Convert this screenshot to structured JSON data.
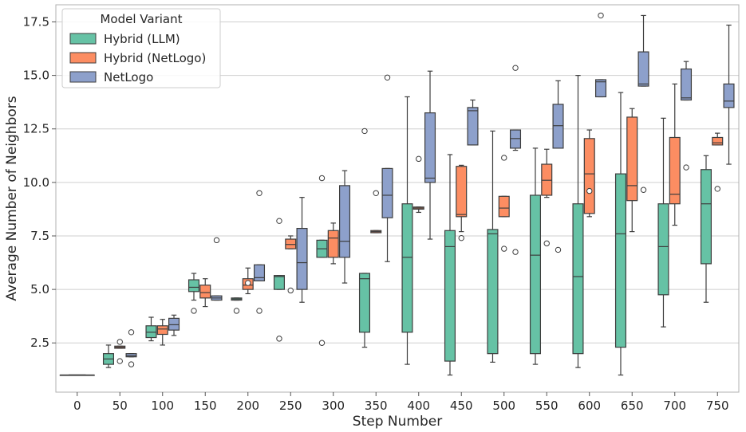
{
  "chart_data": {
    "type": "box",
    "title": "",
    "xlabel": "Step Number",
    "ylabel": "Average Number of Neighbors",
    "categories": [
      "0",
      "50",
      "100",
      "150",
      "200",
      "250",
      "300",
      "350",
      "400",
      "450",
      "500",
      "550",
      "600",
      "650",
      "700",
      "750"
    ],
    "yticks": [
      "2.5",
      "5.0",
      "7.5",
      "10.0",
      "12.5",
      "15.0",
      "17.5"
    ],
    "ylim": [
      0.2,
      18.3
    ],
    "grid": "horizontal",
    "legend": {
      "title": "Model Variant",
      "placement": "top-left",
      "entries": [
        "Hybrid (LLM)",
        "Hybrid (NetLogo)",
        "NetLogo"
      ]
    },
    "series": [
      {
        "name": "Hybrid (LLM)",
        "color": "#66c2a5",
        "boxes": [
          {
            "min": 1.0,
            "q1": 1.0,
            "median": 1.0,
            "q3": 1.0,
            "max": 1.0,
            "outliers": []
          },
          {
            "min": 1.35,
            "q1": 1.5,
            "median": 1.75,
            "q3": 2.0,
            "max": 2.4,
            "outliers": []
          },
          {
            "min": 2.6,
            "q1": 2.75,
            "median": 3.0,
            "q3": 3.3,
            "max": 3.7,
            "outliers": []
          },
          {
            "min": 4.5,
            "q1": 4.9,
            "median": 5.1,
            "q3": 5.45,
            "max": 5.75,
            "outliers": [
              4.0
            ]
          },
          {
            "min": 4.5,
            "q1": 4.5,
            "median": 4.55,
            "q3": 4.6,
            "max": 4.6,
            "outliers": [
              4.0
            ]
          },
          {
            "min": 5.0,
            "q1": 5.0,
            "median": 5.6,
            "q3": 5.65,
            "max": 5.65,
            "outliers": [
              2.7,
              8.2
            ]
          },
          {
            "min": 6.5,
            "q1": 6.5,
            "median": 6.9,
            "q3": 7.3,
            "max": 7.3,
            "outliers": [
              2.5,
              10.2
            ]
          },
          {
            "min": 2.3,
            "q1": 3.0,
            "median": 5.5,
            "q3": 5.75,
            "max": 5.75,
            "outliers": [
              12.4
            ]
          },
          {
            "min": 1.5,
            "q1": 3.0,
            "median": 6.5,
            "q3": 9.0,
            "max": 14.0,
            "outliers": []
          },
          {
            "min": 1.0,
            "q1": 1.65,
            "median": 7.0,
            "q3": 7.75,
            "max": 11.3,
            "outliers": []
          },
          {
            "min": 1.6,
            "q1": 2.0,
            "median": 7.6,
            "q3": 7.8,
            "max": 12.4,
            "outliers": []
          },
          {
            "min": 1.5,
            "q1": 2.0,
            "median": 6.6,
            "q3": 9.4,
            "max": 11.6,
            "outliers": []
          },
          {
            "min": 1.35,
            "q1": 2.0,
            "median": 5.6,
            "q3": 9.0,
            "max": 15.0,
            "outliers": []
          },
          {
            "min": 1.0,
            "q1": 2.3,
            "median": 7.6,
            "q3": 10.4,
            "max": 14.2,
            "outliers": []
          },
          {
            "min": 3.25,
            "q1": 4.75,
            "median": 7.0,
            "q3": 9.0,
            "max": 13.0,
            "outliers": []
          },
          {
            "min": 4.4,
            "q1": 6.2,
            "median": 9.0,
            "q3": 10.6,
            "max": 11.25,
            "outliers": []
          }
        ]
      },
      {
        "name": "Hybrid (NetLogo)",
        "color": "#fc8d62",
        "boxes": [
          null,
          {
            "min": 2.25,
            "q1": 2.25,
            "median": 2.3,
            "q3": 2.35,
            "max": 2.35,
            "outliers": [
              1.65,
              2.55
            ]
          },
          {
            "min": 2.4,
            "q1": 2.9,
            "median": 3.15,
            "q3": 3.3,
            "max": 3.6,
            "outliers": []
          },
          {
            "min": 4.2,
            "q1": 4.6,
            "median": 4.85,
            "q3": 5.2,
            "max": 5.5,
            "outliers": []
          },
          {
            "min": 4.8,
            "q1": 5.0,
            "median": 5.2,
            "q3": 5.5,
            "max": 6.0,
            "outliers": [
              5.3
            ]
          },
          {
            "min": 6.9,
            "q1": 6.9,
            "median": 7.1,
            "q3": 7.35,
            "max": 7.5,
            "outliers": [
              4.95
            ]
          },
          {
            "min": 6.2,
            "q1": 6.5,
            "median": 7.4,
            "q3": 7.75,
            "max": 8.1,
            "outliers": []
          },
          {
            "min": 7.65,
            "q1": 7.65,
            "median": 7.7,
            "q3": 7.75,
            "max": 7.75,
            "outliers": [
              9.5
            ]
          },
          {
            "min": 8.6,
            "q1": 8.75,
            "median": 8.8,
            "q3": 8.85,
            "max": 8.85,
            "outliers": [
              11.1
            ]
          },
          {
            "min": 7.7,
            "q1": 8.4,
            "median": 8.5,
            "q3": 10.75,
            "max": 10.8,
            "outliers": [
              7.4
            ]
          },
          {
            "min": 8.4,
            "q1": 8.4,
            "median": 8.8,
            "q3": 9.35,
            "max": 9.35,
            "outliers": [
              6.9,
              11.15
            ]
          },
          {
            "min": 9.3,
            "q1": 9.4,
            "median": 10.1,
            "q3": 10.85,
            "max": 11.55,
            "outliers": [
              7.15
            ]
          },
          {
            "min": 8.4,
            "q1": 8.55,
            "median": 10.4,
            "q3": 12.05,
            "max": 12.45,
            "outliers": [
              9.6
            ]
          },
          {
            "min": 7.7,
            "q1": 9.15,
            "median": 9.85,
            "q3": 13.05,
            "max": 13.45,
            "outliers": []
          },
          {
            "min": 8.0,
            "q1": 9.0,
            "median": 9.45,
            "q3": 12.1,
            "max": 14.6,
            "outliers": []
          },
          {
            "min": 11.75,
            "q1": 11.75,
            "median": 11.85,
            "q3": 12.1,
            "max": 12.3,
            "outliers": [
              9.7
            ]
          }
        ]
      },
      {
        "name": "NetLogo",
        "color": "#8da0cb",
        "boxes": [
          null,
          {
            "min": 1.85,
            "q1": 1.85,
            "median": 1.9,
            "q3": 2.0,
            "max": 2.0,
            "outliers": [
              1.5,
              3.0
            ]
          },
          {
            "min": 2.85,
            "q1": 3.1,
            "median": 3.35,
            "q3": 3.65,
            "max": 3.8,
            "outliers": []
          },
          {
            "min": 4.5,
            "q1": 4.5,
            "median": 4.6,
            "q3": 4.7,
            "max": 4.7,
            "outliers": [
              7.3
            ]
          },
          {
            "min": 5.4,
            "q1": 5.4,
            "median": 5.55,
            "q3": 6.15,
            "max": 6.15,
            "outliers": [
              4.0,
              9.5
            ]
          },
          {
            "min": 4.4,
            "q1": 5.0,
            "median": 6.25,
            "q3": 7.85,
            "max": 9.3,
            "outliers": []
          },
          {
            "min": 5.3,
            "q1": 6.5,
            "median": 7.25,
            "q3": 9.85,
            "max": 10.55,
            "outliers": []
          },
          {
            "min": 6.3,
            "q1": 8.35,
            "median": 9.4,
            "q3": 10.65,
            "max": 10.65,
            "outliers": [
              14.9
            ]
          },
          {
            "min": 7.35,
            "q1": 10.0,
            "median": 10.2,
            "q3": 13.25,
            "max": 15.2,
            "outliers": []
          },
          {
            "min": 11.75,
            "q1": 11.75,
            "median": 13.35,
            "q3": 13.5,
            "max": 13.85,
            "outliers": []
          },
          {
            "min": 11.5,
            "q1": 11.6,
            "median": 12.05,
            "q3": 12.45,
            "max": 12.45,
            "outliers": [
              6.75,
              15.35
            ]
          },
          {
            "min": 11.6,
            "q1": 11.6,
            "median": 12.65,
            "q3": 13.65,
            "max": 14.75,
            "outliers": [
              6.85
            ]
          },
          {
            "min": 14.0,
            "q1": 14.0,
            "median": 14.7,
            "q3": 14.8,
            "max": 14.8,
            "outliers": [
              17.8
            ]
          },
          {
            "min": 14.5,
            "q1": 14.5,
            "median": 14.6,
            "q3": 16.1,
            "max": 17.8,
            "outliers": [
              9.65
            ]
          },
          {
            "min": 13.85,
            "q1": 13.85,
            "median": 13.95,
            "q3": 15.3,
            "max": 15.65,
            "outliers": [
              10.7
            ]
          },
          {
            "min": 10.85,
            "q1": 13.5,
            "median": 13.8,
            "q3": 14.6,
            "max": 17.35,
            "outliers": []
          }
        ]
      }
    ]
  }
}
